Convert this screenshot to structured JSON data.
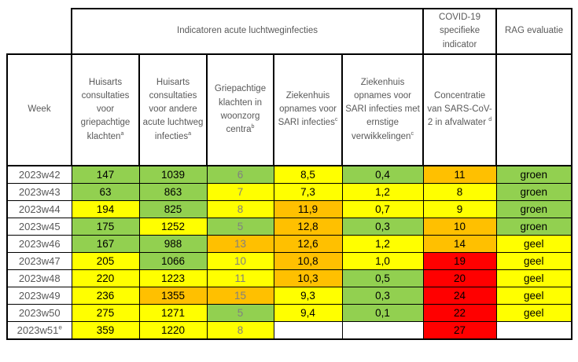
{
  "header": {
    "group_indicators": "Indicatoren acute luchtweginfecties",
    "group_covid": "COVID-19 specifieke indicator",
    "group_rag": "RAG evaluatie",
    "week_label": "Week"
  },
  "columns": [
    {
      "label": "Huisarts consultaties voor griepachtige klachten",
      "sup": "a"
    },
    {
      "label": "Huisarts consultaties voor andere acute luchtweg infecties",
      "sup": "a"
    },
    {
      "label": "Griepachtige klachten in woonzorg centra",
      "sup": "b"
    },
    {
      "label": "Ziekenhuis opnames voor SARI infecties",
      "sup": "c"
    },
    {
      "label": "Ziekenhuis opnames voor SARI infecties met ernstige verwikkelingen",
      "sup": "c"
    },
    {
      "label": "Concentratie van SARS-CoV-2 in afvalwater ",
      "sup": "d"
    }
  ],
  "colors": {
    "green": "#92d050",
    "yellow": "#ffff00",
    "orange": "#ffc000",
    "red": "#ff0000",
    "header_text": "#595959",
    "muted_text": "#808080"
  },
  "rows": [
    {
      "week": "2023w42",
      "week_sup": "",
      "cells": [
        {
          "value": "147",
          "color": "green"
        },
        {
          "value": "1039",
          "color": "green"
        },
        {
          "value": "6",
          "color": "green"
        },
        {
          "value": "8,5",
          "color": "yellow"
        },
        {
          "value": "0,4",
          "color": "green"
        },
        {
          "value": "11",
          "color": "orange"
        }
      ],
      "rag": {
        "value": "groen",
        "color": "green"
      }
    },
    {
      "week": "2023w43",
      "week_sup": "",
      "cells": [
        {
          "value": "63",
          "color": "green"
        },
        {
          "value": "863",
          "color": "green"
        },
        {
          "value": "7",
          "color": "yellow"
        },
        {
          "value": "7,3",
          "color": "yellow"
        },
        {
          "value": "1,2",
          "color": "yellow"
        },
        {
          "value": "8",
          "color": "yellow"
        }
      ],
      "rag": {
        "value": "groen",
        "color": "green"
      }
    },
    {
      "week": "2023w44",
      "week_sup": "",
      "cells": [
        {
          "value": "194",
          "color": "yellow"
        },
        {
          "value": "825",
          "color": "green"
        },
        {
          "value": "8",
          "color": "yellow"
        },
        {
          "value": "11,9",
          "color": "orange"
        },
        {
          "value": "0,7",
          "color": "yellow"
        },
        {
          "value": "9",
          "color": "yellow"
        }
      ],
      "rag": {
        "value": "groen",
        "color": "green"
      }
    },
    {
      "week": "2023w45",
      "week_sup": "",
      "cells": [
        {
          "value": "175",
          "color": "green"
        },
        {
          "value": "1252",
          "color": "yellow"
        },
        {
          "value": "5",
          "color": "green"
        },
        {
          "value": "12,8",
          "color": "orange"
        },
        {
          "value": "0,3",
          "color": "green"
        },
        {
          "value": "10",
          "color": "orange"
        }
      ],
      "rag": {
        "value": "groen",
        "color": "green"
      }
    },
    {
      "week": "2023w46",
      "week_sup": "",
      "cells": [
        {
          "value": "167",
          "color": "green"
        },
        {
          "value": "988",
          "color": "green"
        },
        {
          "value": "13",
          "color": "orange"
        },
        {
          "value": "12,6",
          "color": "orange"
        },
        {
          "value": "1,2",
          "color": "yellow"
        },
        {
          "value": "14",
          "color": "orange"
        }
      ],
      "rag": {
        "value": "geel",
        "color": "yellow"
      }
    },
    {
      "week": "2023w47",
      "week_sup": "",
      "cells": [
        {
          "value": "205",
          "color": "yellow"
        },
        {
          "value": "1066",
          "color": "green"
        },
        {
          "value": "10",
          "color": "yellow"
        },
        {
          "value": "10,8",
          "color": "orange"
        },
        {
          "value": "1,0",
          "color": "yellow"
        },
        {
          "value": "19",
          "color": "red"
        }
      ],
      "rag": {
        "value": "geel",
        "color": "yellow"
      }
    },
    {
      "week": "2023w48",
      "week_sup": "",
      "cells": [
        {
          "value": "220",
          "color": "yellow"
        },
        {
          "value": "1223",
          "color": "yellow"
        },
        {
          "value": "11",
          "color": "yellow"
        },
        {
          "value": "10,3",
          "color": "orange"
        },
        {
          "value": "0,5",
          "color": "green"
        },
        {
          "value": "20",
          "color": "red"
        }
      ],
      "rag": {
        "value": "geel",
        "color": "yellow"
      }
    },
    {
      "week": "2023w49",
      "week_sup": "",
      "cells": [
        {
          "value": "236",
          "color": "yellow"
        },
        {
          "value": "1355",
          "color": "orange"
        },
        {
          "value": "15",
          "color": "orange"
        },
        {
          "value": "9,3",
          "color": "yellow"
        },
        {
          "value": "0,3",
          "color": "green"
        },
        {
          "value": "24",
          "color": "red"
        }
      ],
      "rag": {
        "value": "geel",
        "color": "yellow"
      }
    },
    {
      "week": "2023w50",
      "week_sup": "",
      "cells": [
        {
          "value": "275",
          "color": "yellow"
        },
        {
          "value": "1271",
          "color": "yellow"
        },
        {
          "value": "5",
          "color": "green"
        },
        {
          "value": "9,4",
          "color": "yellow"
        },
        {
          "value": "0,1",
          "color": "green"
        },
        {
          "value": "22",
          "color": "red"
        }
      ],
      "rag": {
        "value": "geel",
        "color": "yellow"
      }
    },
    {
      "week": "2023w51",
      "week_sup": "e",
      "cells": [
        {
          "value": "359",
          "color": "yellow"
        },
        {
          "value": "1220",
          "color": "yellow"
        },
        {
          "value": "8",
          "color": "yellow"
        },
        {
          "value": "",
          "color": null
        },
        {
          "value": "",
          "color": null
        },
        {
          "value": "27",
          "color": "red"
        }
      ],
      "rag": {
        "value": "",
        "color": null
      }
    }
  ]
}
